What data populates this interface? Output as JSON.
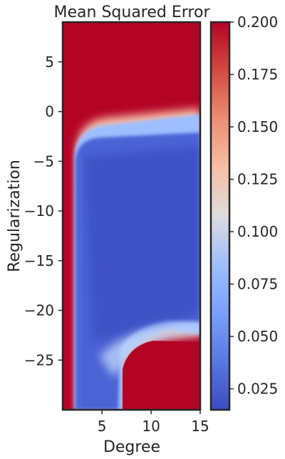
{
  "chart_data": {
    "type": "heatmap",
    "title": "Mean Squared Error",
    "xlabel": "Degree",
    "ylabel": "Regularization",
    "xlim": [
      1,
      15
    ],
    "ylim": [
      -30,
      9
    ],
    "x_ticks": [
      5,
      10,
      15
    ],
    "x_tick_labels": [
      "5",
      "10",
      "15"
    ],
    "y_ticks": [
      -25,
      -20,
      -15,
      -10,
      -5,
      0,
      5
    ],
    "y_tick_labels": [
      "−25",
      "−20",
      "−15",
      "−10",
      "−5",
      "0",
      "5"
    ],
    "colorbar": {
      "colormap": "coolwarm",
      "vmin": 0.015,
      "vmax": 0.2,
      "ticks": [
        0.025,
        0.05,
        0.075,
        0.1,
        0.125,
        0.15,
        0.175,
        0.2
      ],
      "tick_labels": [
        "0.025",
        "0.050",
        "0.075",
        "0.100",
        "0.125",
        "0.150",
        "0.175",
        "0.200"
      ]
    },
    "regions": [
      {
        "description": "degree 1-2 all regularization",
        "value": 0.2
      },
      {
        "description": "regularization above ~0",
        "value": 0.2
      },
      {
        "description": "low error plateau, degree 2-15, regularization -3 to -20",
        "value": 0.025
      },
      {
        "description": "transition ridge near -22",
        "value": 0.12
      },
      {
        "description": "high error, degree 7-15, regularization below -23",
        "value": 0.2
      },
      {
        "description": "low error channel, degree 2-7, regularization below -23",
        "value": 0.04
      }
    ]
  }
}
